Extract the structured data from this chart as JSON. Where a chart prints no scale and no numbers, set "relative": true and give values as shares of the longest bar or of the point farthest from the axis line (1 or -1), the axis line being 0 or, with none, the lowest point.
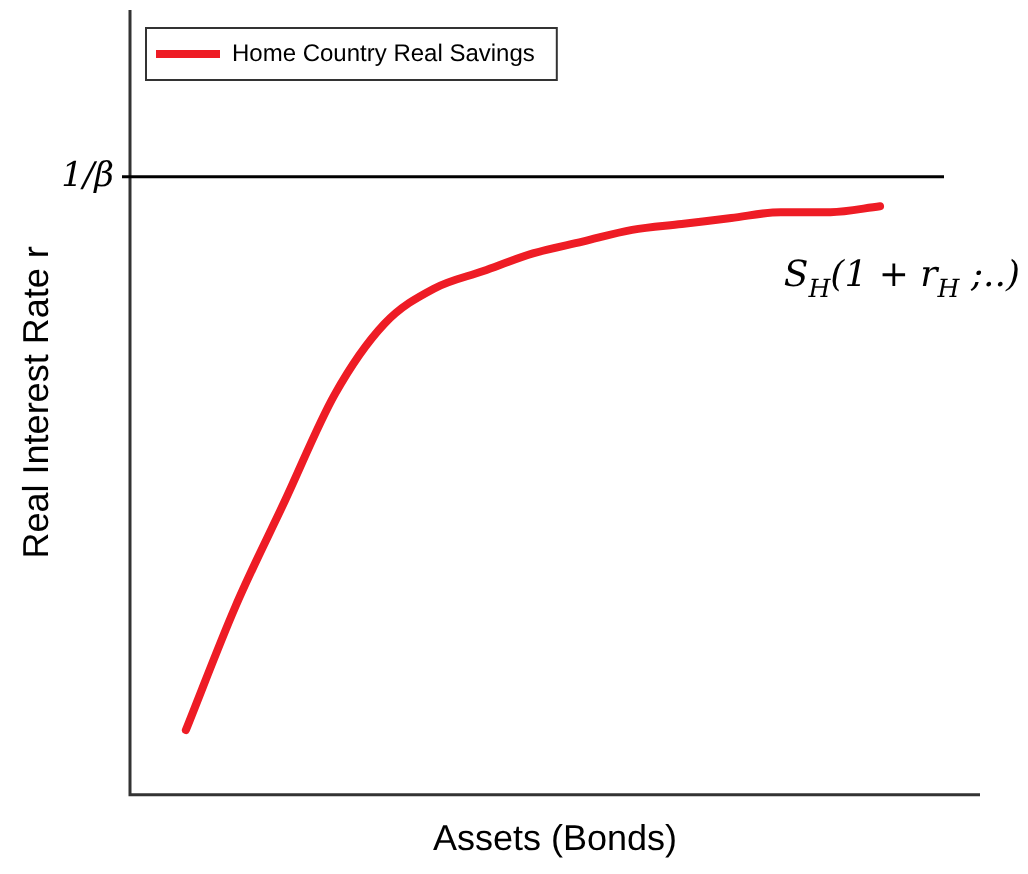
{
  "chart_data": {
    "type": "line",
    "relative": true,
    "xlabel": "Assets (Bonds)",
    "ylabel": "Real Interest Rate r",
    "categories": [
      null,
      null,
      null,
      null,
      null,
      null,
      null,
      null,
      null,
      null,
      null,
      null,
      null,
      null,
      null
    ],
    "series": [
      {
        "name": "Home Country Real Savings",
        "color": "#ee1c25",
        "values": [
          0.11,
          0.32,
          0.5,
          0.68,
          0.8,
          0.86,
          0.89,
          0.92,
          0.94,
          0.96,
          0.97,
          0.98,
          0.99,
          0.99,
          1
        ]
      }
    ],
    "ref_lines": [
      {
        "axis": "y",
        "value": 1.05,
        "label": "1/β",
        "color": "#000000"
      }
    ],
    "annotations": [
      "S$_{H}$(1 + r$_{H}$ ;..)"
    ],
    "legend": "top left",
    "grid": false,
    "marker": "none",
    "line_style": "solid"
  }
}
